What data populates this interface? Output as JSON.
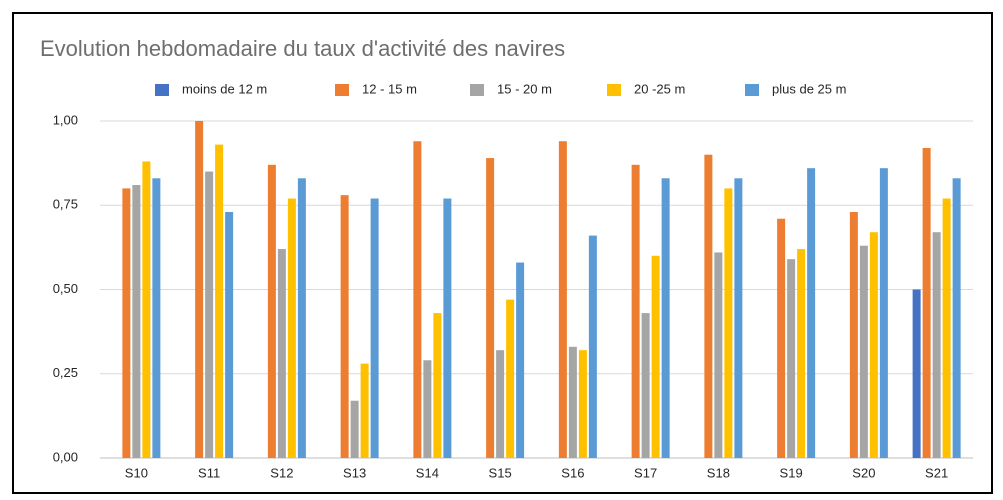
{
  "chart_data": {
    "type": "bar",
    "title": "Evolution hebdomadaire du taux d'activité des navires",
    "categories": [
      "S10",
      "S11",
      "S12",
      "S13",
      "S14",
      "S15",
      "S16",
      "S17",
      "S18",
      "S19",
      "S20",
      "S21"
    ],
    "series": [
      {
        "name": "moins de 12 m",
        "color": "#4472c4",
        "values": [
          null,
          null,
          null,
          null,
          null,
          null,
          null,
          null,
          null,
          null,
          null,
          0.5
        ]
      },
      {
        "name": "12 - 15 m",
        "color": "#ed7d31",
        "values": [
          0.8,
          1.0,
          0.87,
          0.78,
          0.94,
          0.89,
          0.94,
          0.87,
          0.9,
          0.71,
          0.73,
          0.92
        ]
      },
      {
        "name": "15 - 20 m",
        "color": "#a5a5a5",
        "values": [
          0.81,
          0.85,
          0.62,
          0.17,
          0.29,
          0.32,
          0.33,
          0.43,
          0.61,
          0.59,
          0.63,
          0.67
        ]
      },
      {
        "name": "20 -25 m",
        "color": "#ffc000",
        "values": [
          0.88,
          0.93,
          0.77,
          0.28,
          0.43,
          0.47,
          0.32,
          0.6,
          0.8,
          0.62,
          0.67,
          0.77
        ]
      },
      {
        "name": "plus de 25 m",
        "color": "#5b9bd5",
        "values": [
          0.83,
          0.73,
          0.83,
          0.77,
          0.77,
          0.58,
          0.66,
          0.83,
          0.83,
          0.86,
          0.86,
          0.83
        ]
      }
    ],
    "ylim": [
      0,
      1
    ],
    "yticks": [
      {
        "value": 0,
        "label": "0,00"
      },
      {
        "value": 0.25,
        "label": "0,25"
      },
      {
        "value": 0.5,
        "label": "0,50"
      },
      {
        "value": 0.75,
        "label": "0,75"
      },
      {
        "value": 1,
        "label": "1,00"
      }
    ],
    "grid": true,
    "legend": "top"
  }
}
